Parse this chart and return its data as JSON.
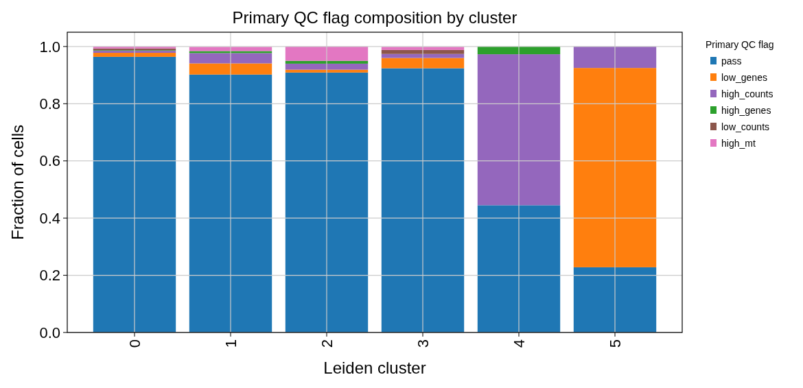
{
  "chart_data": {
    "type": "bar",
    "title": "Primary QC flag composition by cluster",
    "xlabel": "Leiden cluster",
    "ylabel": "Fraction of cells",
    "categories": [
      "0",
      "1",
      "2",
      "3",
      "4",
      "5"
    ],
    "stacked": true,
    "series": [
      {
        "name": "pass",
        "color": "#1f77b4",
        "values": [
          0.964,
          0.902,
          0.909,
          0.924,
          0.445,
          0.228
        ]
      },
      {
        "name": "low_genes",
        "color": "#ff7f0e",
        "values": [
          0.014,
          0.039,
          0.01,
          0.036,
          0,
          0.697
        ]
      },
      {
        "name": "high_counts",
        "color": "#9467bd",
        "values": [
          0.007,
          0.036,
          0.021,
          0.014,
          0.528,
          0.075
        ]
      },
      {
        "name": "high_genes",
        "color": "#2ca02c",
        "values": [
          0.002,
          0.007,
          0.01,
          0,
          0.027,
          0
        ]
      },
      {
        "name": "low_counts",
        "color": "#8c564b",
        "values": [
          0.006,
          0,
          0,
          0.014,
          0,
          0
        ]
      },
      {
        "name": "high_mt",
        "color": "#e377c2",
        "values": [
          0.007,
          0.015,
          0.05,
          0.011,
          0,
          0
        ]
      }
    ],
    "ylim": [
      0,
      1.05
    ],
    "yticks": [
      {
        "value": 0,
        "label": "0.0"
      },
      {
        "value": 0.2,
        "label": "0.2"
      },
      {
        "value": 0.4,
        "label": "0.4"
      },
      {
        "value": 0.6,
        "label": "0.6"
      },
      {
        "value": 0.8,
        "label": "0.8"
      },
      {
        "value": 1,
        "label": "1.0"
      }
    ],
    "grid": true,
    "legend": "right",
    "legend_title": "Primary QC flag"
  }
}
